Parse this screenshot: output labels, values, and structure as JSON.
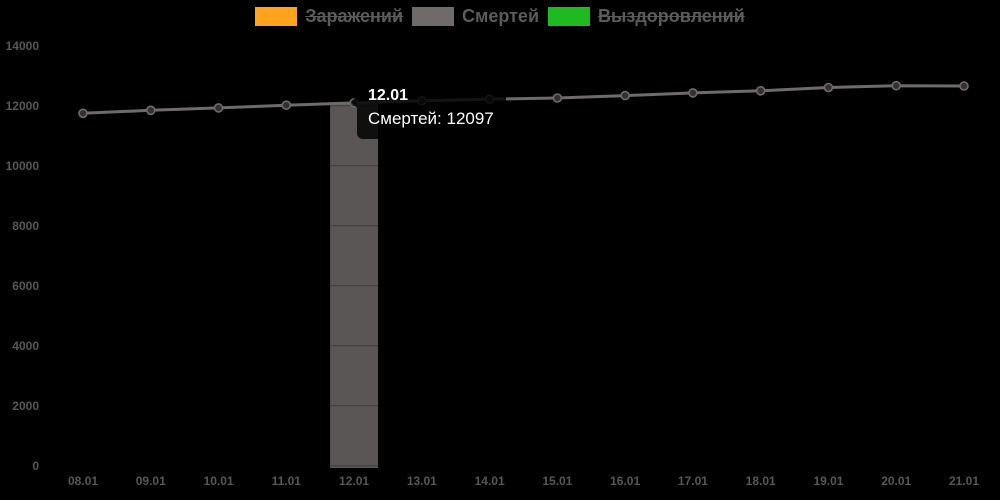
{
  "page": {
    "background_color": "#000000",
    "axis_text_color": "#575757",
    "legend_text_color": "#5b5b5b"
  },
  "legend": {
    "position": "top",
    "items": [
      {
        "label": "Заражений",
        "color": "#ffa41c",
        "hidden": true
      },
      {
        "label": "Смертей",
        "color": "#6f6b6b",
        "hidden": false
      },
      {
        "label": "Выздоровлений",
        "color": "#1fba1f",
        "hidden": true
      }
    ]
  },
  "tooltip": {
    "title": "12.01",
    "text": "Смертей: 12097",
    "series_label": "Смертей",
    "value": 12097,
    "background": "#000000"
  },
  "chart_data": {
    "type": "line",
    "title": "",
    "xlabel": "",
    "ylabel": "",
    "categories": [
      "08.01",
      "09.01",
      "10.01",
      "11.01",
      "12.01",
      "13.01",
      "14.01",
      "15.01",
      "16.01",
      "17.01",
      "18.01",
      "19.01",
      "20.01",
      "21.01"
    ],
    "series": [
      {
        "name": "Заражений",
        "color": "#ffa41c",
        "hidden": true
      },
      {
        "name": "Смертей",
        "color": "#6f6b6b",
        "hidden": false,
        "values": [
          11750,
          11850,
          11930,
          12020,
          12097,
          12170,
          12220,
          12260,
          12340,
          12430,
          12500,
          12610,
          12670,
          12660
        ]
      },
      {
        "name": "Выздоровлений",
        "color": "#1fba1f",
        "hidden": true
      }
    ],
    "ylim": [
      0,
      14000
    ],
    "yticks": [
      0,
      2000,
      4000,
      6000,
      8000,
      10000,
      12000,
      14000
    ],
    "legend_position": "top",
    "grid": "horizontal lines visible only across highlight column",
    "highlight": {
      "category": "12.01",
      "series": "Смертей",
      "value": 12097,
      "bar_color": "#5a5656"
    }
  }
}
